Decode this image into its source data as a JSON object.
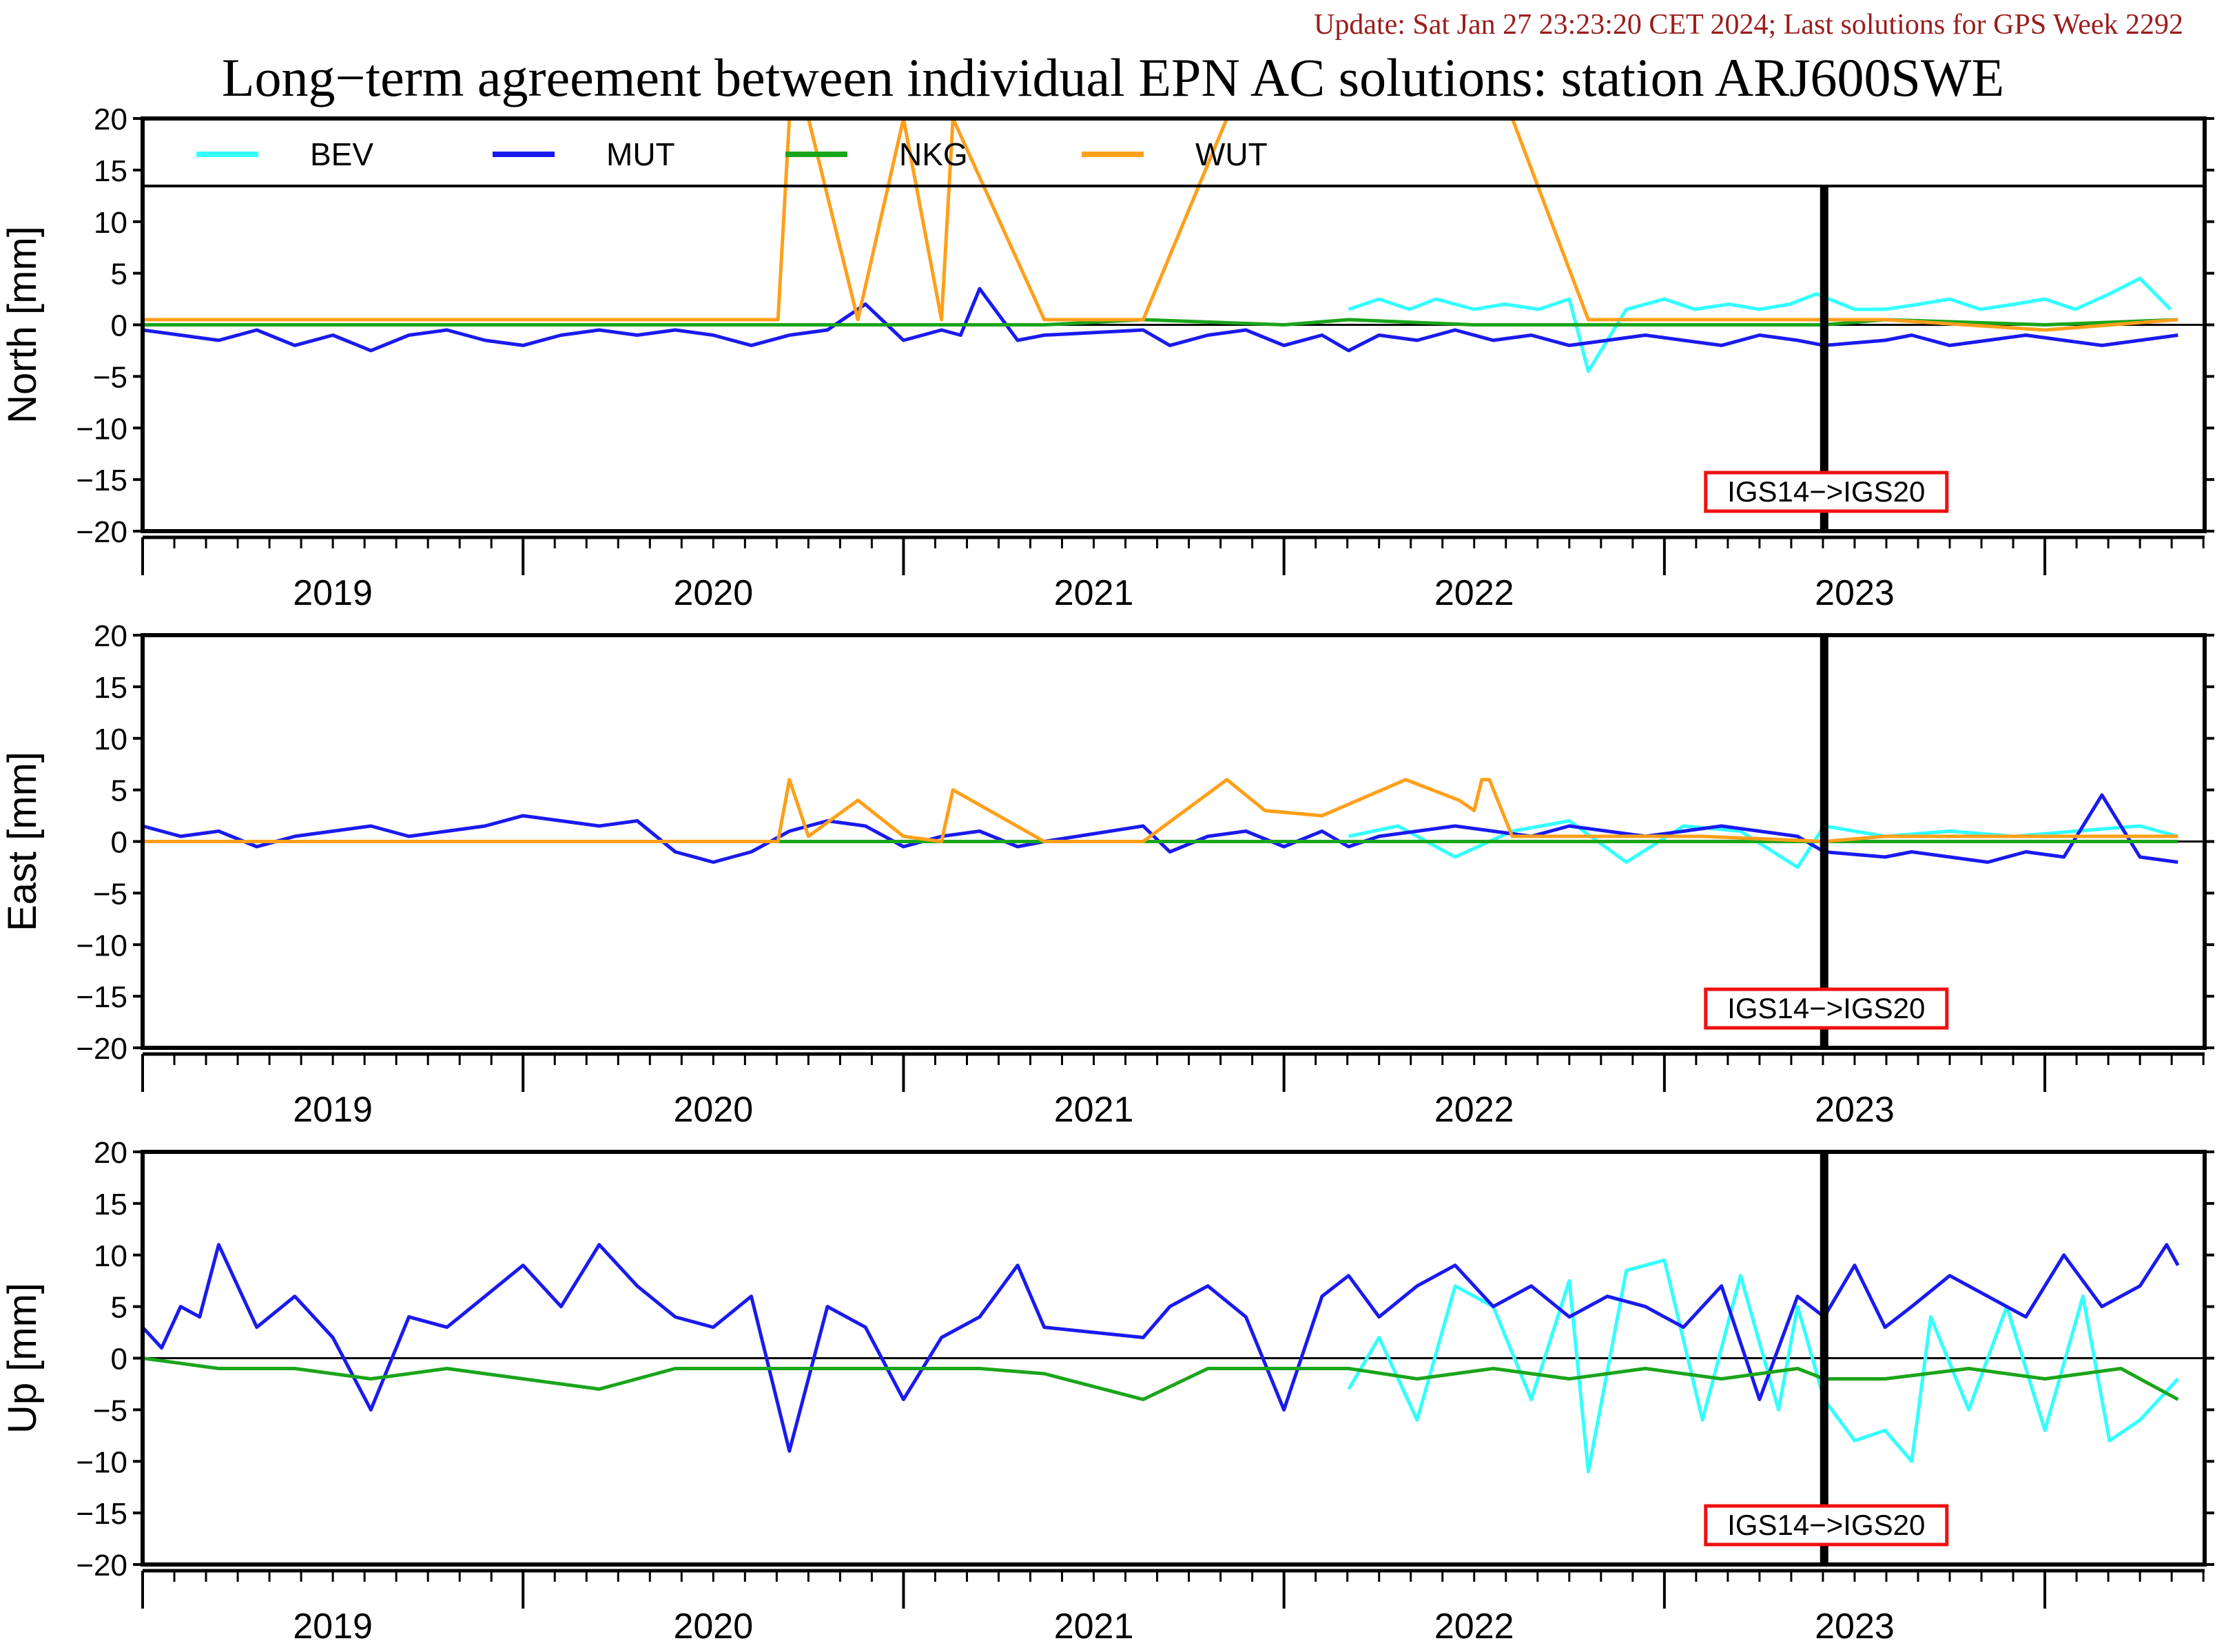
{
  "header": {
    "update_text": "Update: Sat Jan 27 23:23:20 CET 2024; Last solutions for GPS Week 2292",
    "title": "Long−term agreement between individual EPN AC solutions: station ARJ600SWE"
  },
  "colors": {
    "BEV": "#33ffff",
    "MUT": "#1a1aee",
    "NKG": "#1aa51a",
    "WUT": "#ff9f1a",
    "frame_change_box": "#ee1111"
  },
  "legend": [
    {
      "name": "BEV",
      "color": "#33ffff"
    },
    {
      "name": "MUT",
      "color": "#1a1aee"
    },
    {
      "name": "NKG",
      "color": "#1aa51a"
    },
    {
      "name": "WUT",
      "color": "#ff9f1a"
    }
  ],
  "annotation": {
    "label": "IGS14−>IGS20",
    "date": 2022.92
  },
  "chart_data": [
    {
      "type": "line",
      "ylabel": "North [mm]",
      "ylim": [
        -20,
        20
      ],
      "yticks": [
        20,
        15,
        10,
        5,
        0,
        -5,
        -10,
        -15,
        -20
      ],
      "xlim": [
        2018.5,
        2023.92
      ],
      "xticks": [
        "2019",
        "2020",
        "2021",
        "2022",
        "2023"
      ],
      "series": [
        {
          "name": "BEV",
          "x": [
            2021.67,
            2021.75,
            2021.83,
            2021.9,
            2022.0,
            2022.08,
            2022.17,
            2022.25,
            2022.3,
            2022.4,
            2022.5,
            2022.58,
            2022.67,
            2022.75,
            2022.83,
            2022.9,
            2023.0,
            2023.08,
            2023.17,
            2023.25,
            2023.33,
            2023.42,
            2023.5,
            2023.58,
            2023.67,
            2023.75,
            2023.83
          ],
          "y": [
            1.5,
            2.5,
            1.5,
            2.5,
            1.5,
            2.0,
            1.5,
            2.5,
            -4.5,
            1.5,
            2.5,
            1.5,
            2.0,
            1.5,
            2.0,
            3.0,
            1.5,
            1.5,
            2.0,
            2.5,
            1.5,
            2.0,
            2.5,
            1.5,
            3.0,
            4.5,
            1.5
          ]
        },
        {
          "name": "MUT",
          "x": [
            2018.5,
            2018.6,
            2018.7,
            2018.8,
            2018.9,
            2019.0,
            2019.1,
            2019.2,
            2019.3,
            2019.4,
            2019.5,
            2019.6,
            2019.7,
            2019.8,
            2019.9,
            2020.0,
            2020.1,
            2020.2,
            2020.3,
            2020.4,
            2020.5,
            2020.6,
            2020.65,
            2020.7,
            2020.8,
            2020.87,
            2021.13,
            2021.2,
            2021.3,
            2021.4,
            2021.5,
            2021.6,
            2021.67,
            2021.75,
            2021.85,
            2021.95,
            2022.05,
            2022.15,
            2022.25,
            2022.35,
            2022.45,
            2022.55,
            2022.65,
            2022.75,
            2022.85,
            2022.92,
            2023.08,
            2023.15,
            2023.25,
            2023.35,
            2023.45,
            2023.55,
            2023.65,
            2023.75,
            2023.85
          ],
          "y": [
            -0.5,
            -1.0,
            -1.5,
            -0.5,
            -2.0,
            -1.0,
            -2.5,
            -1.0,
            -0.5,
            -1.5,
            -2.0,
            -1.0,
            -0.5,
            -1.0,
            -0.5,
            -1.0,
            -2.0,
            -1.0,
            -0.5,
            2.0,
            -1.5,
            -0.5,
            -1.0,
            3.5,
            -1.5,
            -1.0,
            -0.5,
            -2.0,
            -1.0,
            -0.5,
            -2.0,
            -1.0,
            -2.5,
            -1.0,
            -1.5,
            -0.5,
            -1.5,
            -1.0,
            -2.0,
            -1.5,
            -1.0,
            -1.5,
            -2.0,
            -1.0,
            -1.5,
            -2.0,
            -1.5,
            -1.0,
            -2.0,
            -1.5,
            -1.0,
            -1.5,
            -2.0,
            -1.5,
            -1.0
          ]
        },
        {
          "name": "NKG",
          "x": [
            2018.5,
            2019.0,
            2019.5,
            2020.0,
            2020.5,
            2020.87,
            2021.13,
            2021.5,
            2021.67,
            2022.0,
            2022.5,
            2022.92,
            2023.08,
            2023.5,
            2023.85
          ],
          "y": [
            0.0,
            0.0,
            0.0,
            0.0,
            0.0,
            0.0,
            0.5,
            0.0,
            0.5,
            0.0,
            0.0,
            0.0,
            0.5,
            0.0,
            0.5
          ]
        },
        {
          "name": "WUT",
          "x": [
            2018.5,
            2019.0,
            2019.5,
            2020.0,
            2020.17,
            2020.2,
            2020.25,
            2020.38,
            2020.5,
            2020.6,
            2020.63,
            2020.87,
            2021.13,
            2021.35,
            2021.45,
            2021.6,
            2021.82,
            2021.96,
            2022.0,
            2022.02,
            2022.04,
            2022.1,
            2022.3,
            2022.6,
            2022.92,
            2023.08,
            2023.5,
            2023.85
          ],
          "y": [
            0.5,
            0.5,
            0.5,
            0.5,
            0.5,
            20.0,
            20.0,
            0.5,
            20.0,
            0.5,
            20.0,
            0.5,
            0.5,
            20.0,
            20.0,
            20.0,
            20.0,
            20.0,
            20.0,
            20.0,
            20.0,
            20.0,
            0.5,
            0.5,
            0.5,
            0.5,
            -0.5,
            0.5
          ]
        }
      ]
    },
    {
      "type": "line",
      "ylabel": "East [mm]",
      "ylim": [
        -20,
        20
      ],
      "yticks": [
        20,
        15,
        10,
        5,
        0,
        -5,
        -10,
        -15,
        -20
      ],
      "xlim": [
        2018.5,
        2023.92
      ],
      "xticks": [
        "2019",
        "2020",
        "2021",
        "2022",
        "2023"
      ],
      "series": [
        {
          "name": "BEV",
          "x": [
            2021.67,
            2021.8,
            2021.95,
            2022.1,
            2022.25,
            2022.4,
            2022.55,
            2022.7,
            2022.85,
            2022.92,
            2023.08,
            2023.25,
            2023.42,
            2023.58,
            2023.75,
            2023.85
          ],
          "y": [
            0.5,
            1.5,
            -1.5,
            1.0,
            2.0,
            -2.0,
            1.5,
            1.0,
            -2.5,
            1.5,
            0.5,
            1.0,
            0.5,
            1.0,
            1.5,
            0.5
          ]
        },
        {
          "name": "MUT",
          "x": [
            2018.5,
            2018.6,
            2018.7,
            2018.8,
            2018.9,
            2019.0,
            2019.1,
            2019.2,
            2019.3,
            2019.4,
            2019.5,
            2019.6,
            2019.7,
            2019.8,
            2019.9,
            2020.0,
            2020.1,
            2020.2,
            2020.3,
            2020.4,
            2020.5,
            2020.6,
            2020.7,
            2020.8,
            2020.87,
            2021.13,
            2021.2,
            2021.3,
            2021.4,
            2021.5,
            2021.6,
            2021.67,
            2021.75,
            2021.85,
            2021.95,
            2022.05,
            2022.15,
            2022.25,
            2022.35,
            2022.45,
            2022.55,
            2022.65,
            2022.75,
            2022.85,
            2022.92,
            2023.08,
            2023.15,
            2023.25,
            2023.35,
            2023.45,
            2023.55,
            2023.65,
            2023.75,
            2023.85
          ],
          "y": [
            1.5,
            0.5,
            1.0,
            -0.5,
            0.5,
            1.0,
            1.5,
            0.5,
            1.0,
            1.5,
            2.5,
            2.0,
            1.5,
            2.0,
            -1.0,
            -2.0,
            -1.0,
            1.0,
            2.0,
            1.5,
            -0.5,
            0.5,
            1.0,
            -0.5,
            0.0,
            1.5,
            -1.0,
            0.5,
            1.0,
            -0.5,
            1.0,
            -0.5,
            0.5,
            1.0,
            1.5,
            1.0,
            0.5,
            1.5,
            1.0,
            0.5,
            1.0,
            1.5,
            1.0,
            0.5,
            -1.0,
            -1.5,
            -1.0,
            -1.5,
            -2.0,
            -1.0,
            -1.5,
            4.5,
            -1.5,
            -2.0
          ]
        },
        {
          "name": "NKG",
          "x": [
            2018.5,
            2019.0,
            2019.5,
            2020.0,
            2020.5,
            2020.87,
            2021.13,
            2021.5,
            2021.67,
            2022.0,
            2022.5,
            2022.92,
            2023.08,
            2023.5,
            2023.85
          ],
          "y": [
            0.0,
            0.0,
            0.0,
            0.0,
            0.0,
            0.0,
            0.0,
            0.0,
            0.0,
            0.0,
            0.0,
            0.0,
            0.0,
            0.0,
            0.0
          ]
        },
        {
          "name": "WUT",
          "x": [
            2018.5,
            2019.0,
            2019.5,
            2020.0,
            2020.17,
            2020.2,
            2020.25,
            2020.38,
            2020.5,
            2020.6,
            2020.63,
            2020.87,
            2021.13,
            2021.35,
            2021.45,
            2021.6,
            2021.82,
            2021.96,
            2022.0,
            2022.02,
            2022.04,
            2022.1,
            2022.3,
            2022.6,
            2022.92,
            2023.08,
            2023.5,
            2023.85
          ],
          "y": [
            0.0,
            0.0,
            0.0,
            0.0,
            0.0,
            6.0,
            0.5,
            4.0,
            0.5,
            0.0,
            5.0,
            0.0,
            0.0,
            6.0,
            3.0,
            2.5,
            6.0,
            4.0,
            3.0,
            6.0,
            6.0,
            0.5,
            0.5,
            0.5,
            0.0,
            0.5,
            0.5,
            0.5
          ]
        }
      ]
    },
    {
      "type": "line",
      "ylabel": "Up [mm]",
      "ylim": [
        -20,
        20
      ],
      "yticks": [
        20,
        15,
        10,
        5,
        0,
        -5,
        -10,
        -15,
        -20
      ],
      "xlim": [
        2018.5,
        2023.92
      ],
      "xticks": [
        "2019",
        "2020",
        "2021",
        "2022",
        "2023"
      ],
      "series": [
        {
          "name": "BEV",
          "x": [
            2021.67,
            2021.75,
            2021.85,
            2021.95,
            2022.05,
            2022.15,
            2022.25,
            2022.3,
            2022.4,
            2022.5,
            2022.6,
            2022.7,
            2022.8,
            2022.85,
            2022.92,
            2023.0,
            2023.08,
            2023.15,
            2023.2,
            2023.3,
            2023.4,
            2023.5,
            2023.6,
            2023.67,
            2023.75,
            2023.85
          ],
          "y": [
            -3.0,
            2.0,
            -6.0,
            7.0,
            5.0,
            -4.0,
            7.5,
            -11.0,
            8.5,
            9.5,
            -6.0,
            8.0,
            -5.0,
            5.0,
            -4.0,
            -8.0,
            -7.0,
            -10.0,
            4.0,
            -5.0,
            5.0,
            -7.0,
            6.0,
            -8.0,
            -6.0,
            -2.0
          ]
        },
        {
          "name": "MUT",
          "x": [
            2018.5,
            2018.55,
            2018.6,
            2018.65,
            2018.7,
            2018.8,
            2018.9,
            2019.0,
            2019.1,
            2019.2,
            2019.3,
            2019.4,
            2019.5,
            2019.6,
            2019.7,
            2019.8,
            2019.9,
            2020.0,
            2020.1,
            2020.2,
            2020.3,
            2020.4,
            2020.5,
            2020.6,
            2020.7,
            2020.8,
            2020.87,
            2021.13,
            2021.2,
            2021.3,
            2021.4,
            2021.5,
            2021.6,
            2021.67,
            2021.75,
            2021.85,
            2021.95,
            2022.05,
            2022.15,
            2022.25,
            2022.35,
            2022.45,
            2022.55,
            2022.65,
            2022.75,
            2022.85,
            2022.92,
            2023.0,
            2023.08,
            2023.15,
            2023.25,
            2023.35,
            2023.45,
            2023.55,
            2023.65,
            2023.75,
            2023.82,
            2023.85
          ],
          "y": [
            3.0,
            1.0,
            5.0,
            4.0,
            11.0,
            3.0,
            6.0,
            2.0,
            -5.0,
            4.0,
            3.0,
            6.0,
            9.0,
            5.0,
            11.0,
            7.0,
            4.0,
            3.0,
            6.0,
            -9.0,
            5.0,
            3.0,
            -4.0,
            2.0,
            4.0,
            9.0,
            3.0,
            2.0,
            5.0,
            7.0,
            4.0,
            -5.0,
            6.0,
            8.0,
            4.0,
            7.0,
            9.0,
            5.0,
            7.0,
            4.0,
            6.0,
            5.0,
            3.0,
            7.0,
            -4.0,
            6.0,
            4.0,
            9.0,
            3.0,
            5.0,
            8.0,
            6.0,
            4.0,
            10.0,
            5.0,
            7.0,
            11.0,
            9.0
          ]
        },
        {
          "name": "NKG",
          "x": [
            2018.5,
            2018.7,
            2018.9,
            2019.1,
            2019.3,
            2019.5,
            2019.7,
            2019.9,
            2020.1,
            2020.3,
            2020.5,
            2020.7,
            2020.87,
            2021.13,
            2021.3,
            2021.5,
            2021.67,
            2021.85,
            2022.05,
            2022.25,
            2022.45,
            2022.65,
            2022.85,
            2022.92,
            2023.08,
            2023.3,
            2023.5,
            2023.7,
            2023.85
          ],
          "y": [
            0.0,
            -1.0,
            -1.0,
            -2.0,
            -1.0,
            -2.0,
            -3.0,
            -1.0,
            -1.0,
            -1.0,
            -1.0,
            -1.0,
            -1.5,
            -4.0,
            -1.0,
            -1.0,
            -1.0,
            -2.0,
            -1.0,
            -2.0,
            -1.0,
            -2.0,
            -1.0,
            -2.0,
            -2.0,
            -1.0,
            -2.0,
            -1.0,
            -4.0
          ]
        }
      ]
    }
  ]
}
